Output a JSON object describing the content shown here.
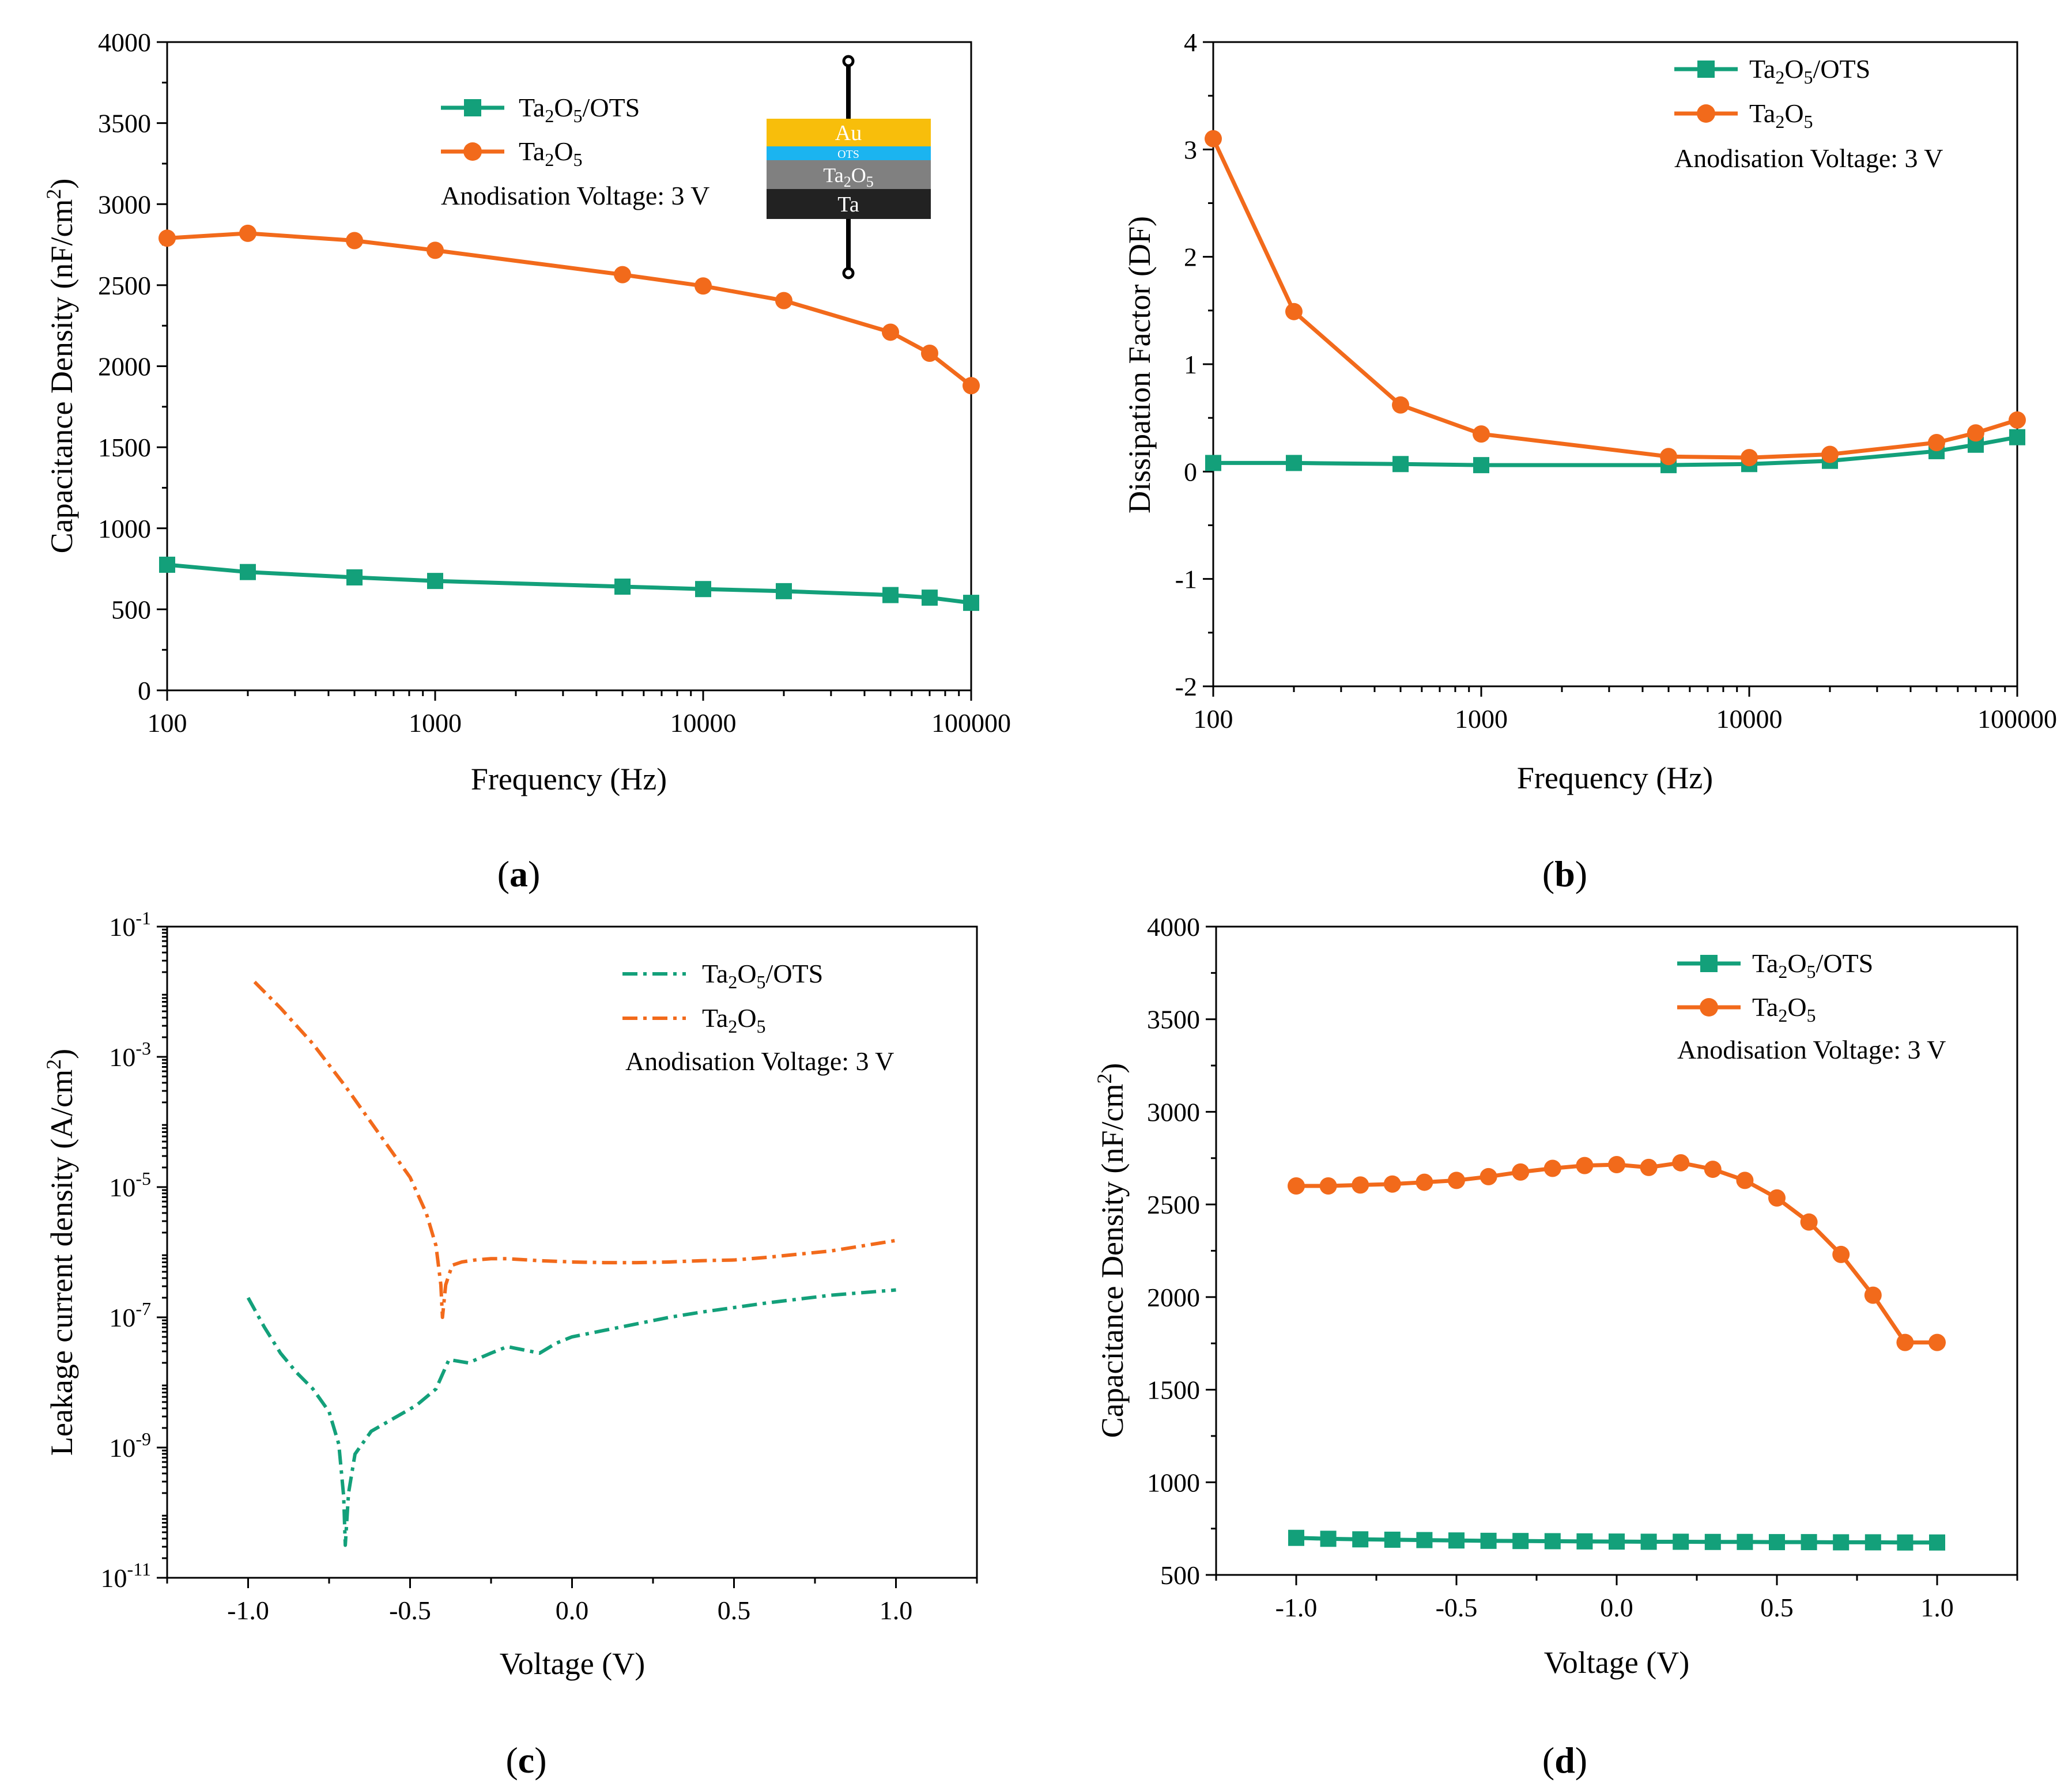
{
  "colors": {
    "ots": "#13A07A",
    "bare": "#F26A1B",
    "au": "#F8BE0B",
    "ots_layer": "#1BB4F0",
    "ta2o5_layer": "#808080",
    "ta_layer": "#222222"
  },
  "legend": {
    "ots_base": "Ta",
    "ots_sub1": "2",
    "ots_mid": "O",
    "ots_sub2": "5",
    "ots_suffix": "/OTS",
    "bare_base": "Ta",
    "bare_sub1": "2",
    "bare_mid": "O",
    "bare_sub2": "5",
    "note": "Anodisation Voltage: 3 V"
  },
  "inset": {
    "au": "Au",
    "ots": "OTS",
    "ta2o5_base": "Ta",
    "ta2o5_sub1": "2",
    "ta2o5_mid": "O",
    "ta2o5_sub2": "5",
    "ta": "Ta"
  },
  "chart_data": [
    {
      "id": "a",
      "type": "line",
      "panel_label": {
        "open": "(",
        "letter": "a",
        "close": ")"
      },
      "xlabel": "Frequency (Hz)",
      "ylabel_main": "Capacitance Density (nF/cm",
      "ylabel_sup": "2",
      "ylabel_close": ")",
      "xscale": "log",
      "xlim": [
        100,
        100000
      ],
      "ylim": [
        0,
        4000
      ],
      "xticks": [
        100,
        1000,
        10000,
        100000
      ],
      "xtick_labels": [
        "100",
        "1000",
        "10000",
        "100000"
      ],
      "yticks": [
        0,
        500,
        1000,
        1500,
        2000,
        2500,
        3000,
        3500,
        4000
      ],
      "ytick_labels": [
        "0",
        "500",
        "1000",
        "1500",
        "2000",
        "2500",
        "3000",
        "3500",
        "4000"
      ],
      "x": [
        100,
        200,
        500,
        1000,
        5000,
        10000,
        20000,
        50000,
        70000,
        100000
      ],
      "series": [
        {
          "name": "Ta2O5/OTS",
          "marker": "square",
          "values": [
            775,
            730,
            697,
            675,
            640,
            625,
            612,
            588,
            572,
            540
          ]
        },
        {
          "name": "Ta2O5",
          "marker": "circle",
          "values": [
            2790,
            2820,
            2775,
            2715,
            2565,
            2495,
            2405,
            2210,
            2080,
            1880
          ]
        }
      ],
      "legend_position": "top-center"
    },
    {
      "id": "b",
      "type": "line",
      "panel_label": {
        "open": "(",
        "letter": "b",
        "close": ")"
      },
      "xlabel": "Frequency (Hz)",
      "ylabel": "Dissipation Factor (DF)",
      "xscale": "log",
      "xlim": [
        100,
        100000
      ],
      "ylim": [
        -2,
        4
      ],
      "xticks": [
        100,
        1000,
        10000,
        100000
      ],
      "xtick_labels": [
        "100",
        "1000",
        "10000",
        "100000"
      ],
      "yticks": [
        -2,
        -1,
        0,
        1,
        2,
        3,
        4
      ],
      "ytick_labels": [
        "-2",
        "-1",
        "0",
        "1",
        "2",
        "3",
        "4"
      ],
      "x": [
        100,
        200,
        500,
        1000,
        5000,
        10000,
        20000,
        50000,
        70000,
        100000
      ],
      "series": [
        {
          "name": "Ta2O5/OTS",
          "marker": "square",
          "values": [
            0.08,
            0.08,
            0.07,
            0.06,
            0.06,
            0.07,
            0.1,
            0.19,
            0.25,
            0.32
          ]
        },
        {
          "name": "Ta2O5",
          "marker": "circle",
          "values": [
            3.1,
            1.49,
            0.62,
            0.35,
            0.14,
            0.13,
            0.16,
            0.27,
            0.36,
            0.48
          ]
        }
      ],
      "legend_position": "top-right"
    },
    {
      "id": "c",
      "type": "line",
      "panel_label": {
        "open": "(",
        "letter": "c",
        "close": ")"
      },
      "xlabel": "Voltage (V)",
      "ylabel_main": "Leakage current density (A/cm",
      "ylabel_sup": "2",
      "ylabel_close": ")",
      "yscale": "log",
      "xlim": [
        -1.25,
        1.25
      ],
      "ylim_exp": [
        -11,
        -1
      ],
      "xticks": [
        -1.0,
        -0.5,
        0.0,
        0.5,
        1.0
      ],
      "xtick_labels": [
        "-1.0",
        "-0.5",
        "0.0",
        "0.5",
        "1.0"
      ],
      "ytick_exps": [
        -11,
        -9,
        -7,
        -5,
        -3,
        -1
      ],
      "ytick_base": "10",
      "ytick_exp_labels": [
        "-11",
        "-9",
        "-7",
        "-5",
        "-3",
        "-1"
      ],
      "series": [
        {
          "name": "Ta2O5/OTS",
          "style": "dash-dot",
          "x": [
            -1.0,
            -0.95,
            -0.9,
            -0.85,
            -0.8,
            -0.75,
            -0.72,
            -0.705,
            -0.7,
            -0.69,
            -0.67,
            -0.62,
            -0.55,
            -0.48,
            -0.42,
            -0.38,
            -0.32,
            -0.25,
            -0.2,
            -0.15,
            -0.1,
            -0.05,
            0.0,
            0.1,
            0.2,
            0.3,
            0.4,
            0.5,
            0.6,
            0.7,
            0.8,
            0.9,
            1.0
          ],
          "log_values": [
            -6.7,
            -7.15,
            -7.55,
            -7.85,
            -8.1,
            -8.45,
            -8.95,
            -9.75,
            -10.5,
            -9.7,
            -9.1,
            -8.75,
            -8.55,
            -8.35,
            -8.1,
            -7.65,
            -7.7,
            -7.55,
            -7.45,
            -7.5,
            -7.55,
            -7.4,
            -7.3,
            -7.2,
            -7.1,
            -7.0,
            -6.92,
            -6.85,
            -6.78,
            -6.72,
            -6.66,
            -6.62,
            -6.58
          ]
        },
        {
          "name": "Ta2O5",
          "style": "dash-dot",
          "x": [
            -0.98,
            -0.9,
            -0.8,
            -0.7,
            -0.6,
            -0.5,
            -0.45,
            -0.42,
            -0.405,
            -0.4,
            -0.39,
            -0.37,
            -0.34,
            -0.3,
            -0.25,
            -0.2,
            -0.1,
            0.0,
            0.1,
            0.2,
            0.3,
            0.4,
            0.5,
            0.6,
            0.7,
            0.8,
            0.9,
            1.0
          ],
          "log_values": [
            -1.85,
            -2.25,
            -2.8,
            -3.45,
            -4.15,
            -4.85,
            -5.4,
            -5.9,
            -6.5,
            -7.0,
            -6.5,
            -6.2,
            -6.15,
            -6.12,
            -6.1,
            -6.1,
            -6.13,
            -6.15,
            -6.16,
            -6.16,
            -6.15,
            -6.13,
            -6.12,
            -6.08,
            -6.03,
            -5.98,
            -5.9,
            -5.82
          ]
        }
      ],
      "legend_position": "top-right"
    },
    {
      "id": "d",
      "type": "line",
      "panel_label": {
        "open": "(",
        "letter": "d",
        "close": ")"
      },
      "xlabel": "Voltage (V)",
      "ylabel_main": "Capacitance Density (nF/cm",
      "ylabel_sup": "2",
      "ylabel_close": ")",
      "xlim": [
        -1.25,
        1.25
      ],
      "ylim": [
        500,
        4000
      ],
      "xticks": [
        -1.0,
        -0.5,
        0.0,
        0.5,
        1.0
      ],
      "xtick_labels": [
        "-1.0",
        "-0.5",
        "0.0",
        "0.5",
        "1.0"
      ],
      "yticks": [
        500,
        1000,
        1500,
        2000,
        2500,
        3000,
        3500,
        4000
      ],
      "ytick_labels": [
        "500",
        "1000",
        "1500",
        "2000",
        "2500",
        "3000",
        "3500",
        "4000"
      ],
      "x": [
        -1.0,
        -0.9,
        -0.8,
        -0.7,
        -0.6,
        -0.5,
        -0.4,
        -0.3,
        -0.2,
        -0.1,
        0.0,
        0.1,
        0.2,
        0.3,
        0.4,
        0.5,
        0.6,
        0.7,
        0.8,
        0.9,
        1.0
      ],
      "series": [
        {
          "name": "Ta2O5/OTS",
          "marker": "square",
          "values": [
            700,
            695,
            692,
            690,
            688,
            686,
            684,
            683,
            682,
            681,
            680,
            679,
            679,
            678,
            678,
            677,
            677,
            676,
            676,
            675,
            675
          ]
        },
        {
          "name": "Ta2O5",
          "marker": "circle",
          "values": [
            2600,
            2600,
            2605,
            2610,
            2620,
            2630,
            2650,
            2675,
            2695,
            2710,
            2715,
            2700,
            2725,
            2690,
            2630,
            2535,
            2405,
            2230,
            2010,
            1755,
            1755
          ]
        }
      ],
      "legend_position": "top-right"
    }
  ]
}
